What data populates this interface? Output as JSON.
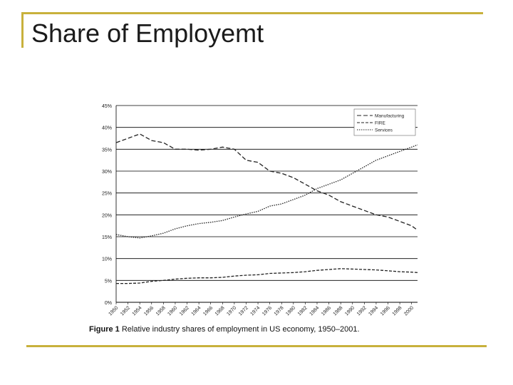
{
  "slide": {
    "title": "Share of Employemt"
  },
  "caption": {
    "label": "Figure 1",
    "text": "Relative industry shares of employment in US economy, 1950–2001."
  },
  "colors": {
    "frame": "#c8b13c",
    "gridline": "#000000",
    "series": "#222222"
  },
  "chart_data": {
    "type": "line",
    "x": [
      1950,
      1952,
      1954,
      1956,
      1958,
      1960,
      1962,
      1964,
      1966,
      1968,
      1970,
      1972,
      1974,
      1976,
      1978,
      1980,
      1982,
      1984,
      1986,
      1988,
      1990,
      1992,
      1994,
      1996,
      1998,
      2000,
      2001
    ],
    "x_tick_labels": [
      "1950",
      "1952",
      "1954",
      "1956",
      "1958",
      "1960",
      "1962",
      "1964",
      "1966",
      "1968",
      "1970",
      "1972",
      "1974",
      "1976",
      "1978",
      "1980",
      "1982",
      "1984",
      "1986",
      "1988",
      "1990",
      "1992",
      "1994",
      "1996",
      "1998",
      "2000"
    ],
    "y_tick_labels": [
      "0%",
      "5%",
      "10%",
      "15%",
      "20%",
      "25%",
      "30%",
      "35%",
      "40%",
      "45%"
    ],
    "ylim": [
      0,
      45
    ],
    "grid": "horizontal",
    "legend_position": "top-right",
    "series": [
      {
        "name": "Manufacturing",
        "dash": "long",
        "values": [
          36.5,
          37.5,
          38.5,
          37.0,
          36.5,
          35.0,
          35.0,
          34.8,
          35.0,
          35.5,
          35.0,
          32.5,
          32.0,
          30.0,
          29.5,
          28.5,
          27.0,
          25.5,
          24.5,
          23.0,
          22.0,
          21.0,
          20.0,
          19.5,
          18.5,
          17.5,
          16.5
        ]
      },
      {
        "name": "FIRE",
        "dash": "medium",
        "values": [
          4.3,
          4.3,
          4.4,
          4.8,
          5.0,
          5.3,
          5.5,
          5.6,
          5.6,
          5.7,
          6.0,
          6.2,
          6.3,
          6.6,
          6.7,
          6.8,
          7.0,
          7.3,
          7.5,
          7.7,
          7.6,
          7.5,
          7.4,
          7.2,
          7.0,
          6.9,
          6.8
        ]
      },
      {
        "name": "Services",
        "dash": "dotted",
        "values": [
          15.5,
          15.0,
          14.7,
          15.2,
          15.8,
          16.8,
          17.5,
          18.0,
          18.3,
          18.7,
          19.5,
          20.2,
          20.8,
          22.0,
          22.5,
          23.5,
          24.5,
          26.0,
          27.0,
          28.0,
          29.5,
          31.0,
          32.5,
          33.5,
          34.5,
          35.5,
          36.0
        ]
      }
    ]
  }
}
